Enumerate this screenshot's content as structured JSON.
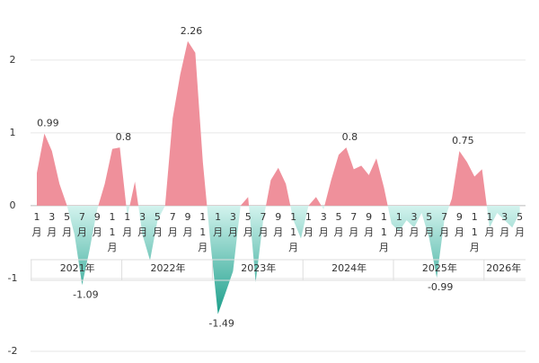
{
  "chart_data": {
    "type": "area",
    "categories": [
      "1月",
      null,
      "3月",
      null,
      "5月",
      null,
      "7月",
      null,
      "9月",
      null,
      "11月",
      null,
      "1月",
      null,
      "3月",
      null,
      "5月",
      null,
      "7月",
      null,
      "9月",
      null,
      "11月",
      null,
      "1月",
      null,
      "3月",
      null,
      "5月",
      null,
      "7月",
      null,
      "9月",
      null,
      "11月",
      null,
      "1月",
      null,
      "3月",
      null,
      "5月",
      null,
      "7月",
      null,
      "9月",
      null,
      "11月",
      null,
      "1月",
      null,
      "3月",
      null,
      "5月",
      null,
      "7月",
      null,
      "9月",
      null,
      "11月",
      null,
      "1月",
      null,
      "3月",
      null,
      "5月"
    ],
    "years": [
      "2021年",
      "2022年",
      "2023年",
      "2024年",
      "2025年",
      "2026年"
    ],
    "values": [
      0.45,
      0.99,
      0.75,
      0.3,
      0.0,
      -0.4,
      -1.09,
      -0.6,
      -0.05,
      0.3,
      0.78,
      0.8,
      -0.15,
      0.33,
      -0.4,
      -0.75,
      -0.2,
      0.0,
      1.2,
      1.8,
      2.26,
      2.1,
      0.6,
      -0.5,
      -1.49,
      -1.2,
      -0.9,
      0.0,
      0.12,
      -1.05,
      -0.2,
      0.35,
      0.52,
      0.3,
      -0.2,
      -0.45,
      0.0,
      0.12,
      -0.05,
      0.35,
      0.7,
      0.8,
      0.5,
      0.55,
      0.42,
      0.65,
      0.25,
      -0.25,
      -0.35,
      -0.2,
      -0.3,
      -0.1,
      -0.45,
      -0.99,
      -0.2,
      0.1,
      0.75,
      0.6,
      0.4,
      0.5,
      -0.3,
      -0.1,
      -0.2,
      -0.3,
      -0.1
    ],
    "value_labels": [
      null,
      "0.99",
      null,
      null,
      null,
      null,
      "-1.09",
      null,
      null,
      null,
      null,
      "0.8",
      null,
      null,
      null,
      null,
      null,
      null,
      null,
      null,
      "2.26",
      null,
      null,
      null,
      "-1.49",
      null,
      null,
      null,
      null,
      null,
      null,
      null,
      null,
      null,
      null,
      null,
      null,
      null,
      null,
      null,
      null,
      "0.8",
      null,
      null,
      null,
      null,
      null,
      null,
      null,
      null,
      null,
      null,
      null,
      "-0.99",
      null,
      null,
      "0.75",
      null,
      null,
      null,
      null,
      null,
      null,
      null,
      null
    ],
    "positive_color": "#ef909b",
    "negative_colors": [
      "#d3f3ee",
      "#1a9e8a"
    ],
    "ylim": [
      -2,
      2.8
    ],
    "yticks": [
      -2,
      -1,
      0,
      1,
      2
    ],
    "grid": true
  }
}
